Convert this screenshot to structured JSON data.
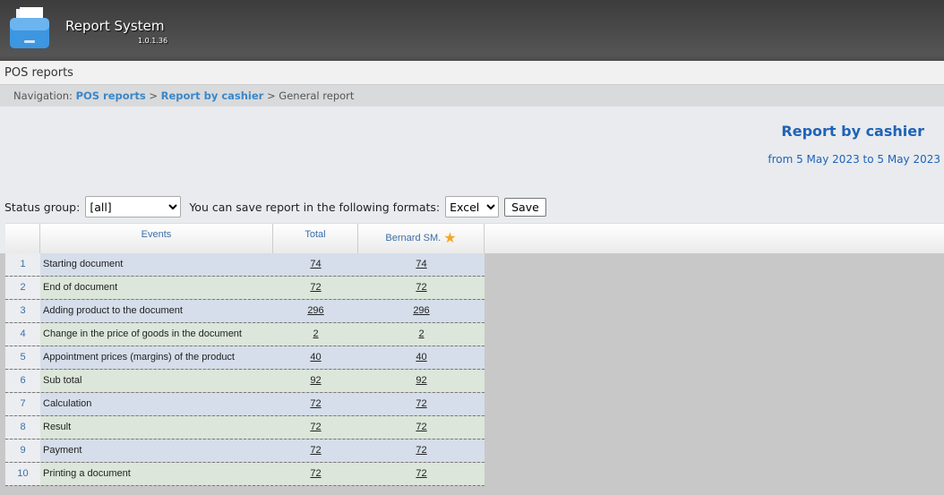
{
  "app": {
    "title": "Report System",
    "version": "1.0.1.36"
  },
  "topbar": {
    "title": "POS reports"
  },
  "nav": {
    "label": "Navigation:",
    "items": [
      "POS reports",
      "Report by cashier",
      "General report"
    ],
    "sep": ">"
  },
  "report": {
    "title": "Report by cashier",
    "date": "from 5 May 2023 to 5 May 2023"
  },
  "controls": {
    "status_label": "Status group:",
    "status_value": "[all]",
    "format_label": "You can save report in the following formats:",
    "format_value": "Excel",
    "save_label": "Save"
  },
  "table": {
    "headers": [
      "Events",
      "Total",
      "Bernard SM."
    ],
    "rows": [
      [
        "1",
        "Starting document",
        "74",
        "74"
      ],
      [
        "2",
        "End of document",
        "72",
        "72"
      ],
      [
        "3",
        "Adding product to the document",
        "296",
        "296"
      ],
      [
        "4",
        "Change in the price of goods in the document",
        "2",
        "2"
      ],
      [
        "5",
        "Appointment prices (margins) of the product",
        "40",
        "40"
      ],
      [
        "6",
        "Sub total",
        "92",
        "92"
      ],
      [
        "7",
        "Calculation",
        "72",
        "72"
      ],
      [
        "8",
        "Result",
        "72",
        "72"
      ],
      [
        "9",
        "Payment",
        "72",
        "72"
      ],
      [
        "10",
        "Printing a document",
        "72",
        "72"
      ]
    ]
  },
  "colors": {
    "accent": "#1f63b8",
    "row_a": "#d5deea",
    "row_b": "#dce6da",
    "star": "#f5a623"
  }
}
